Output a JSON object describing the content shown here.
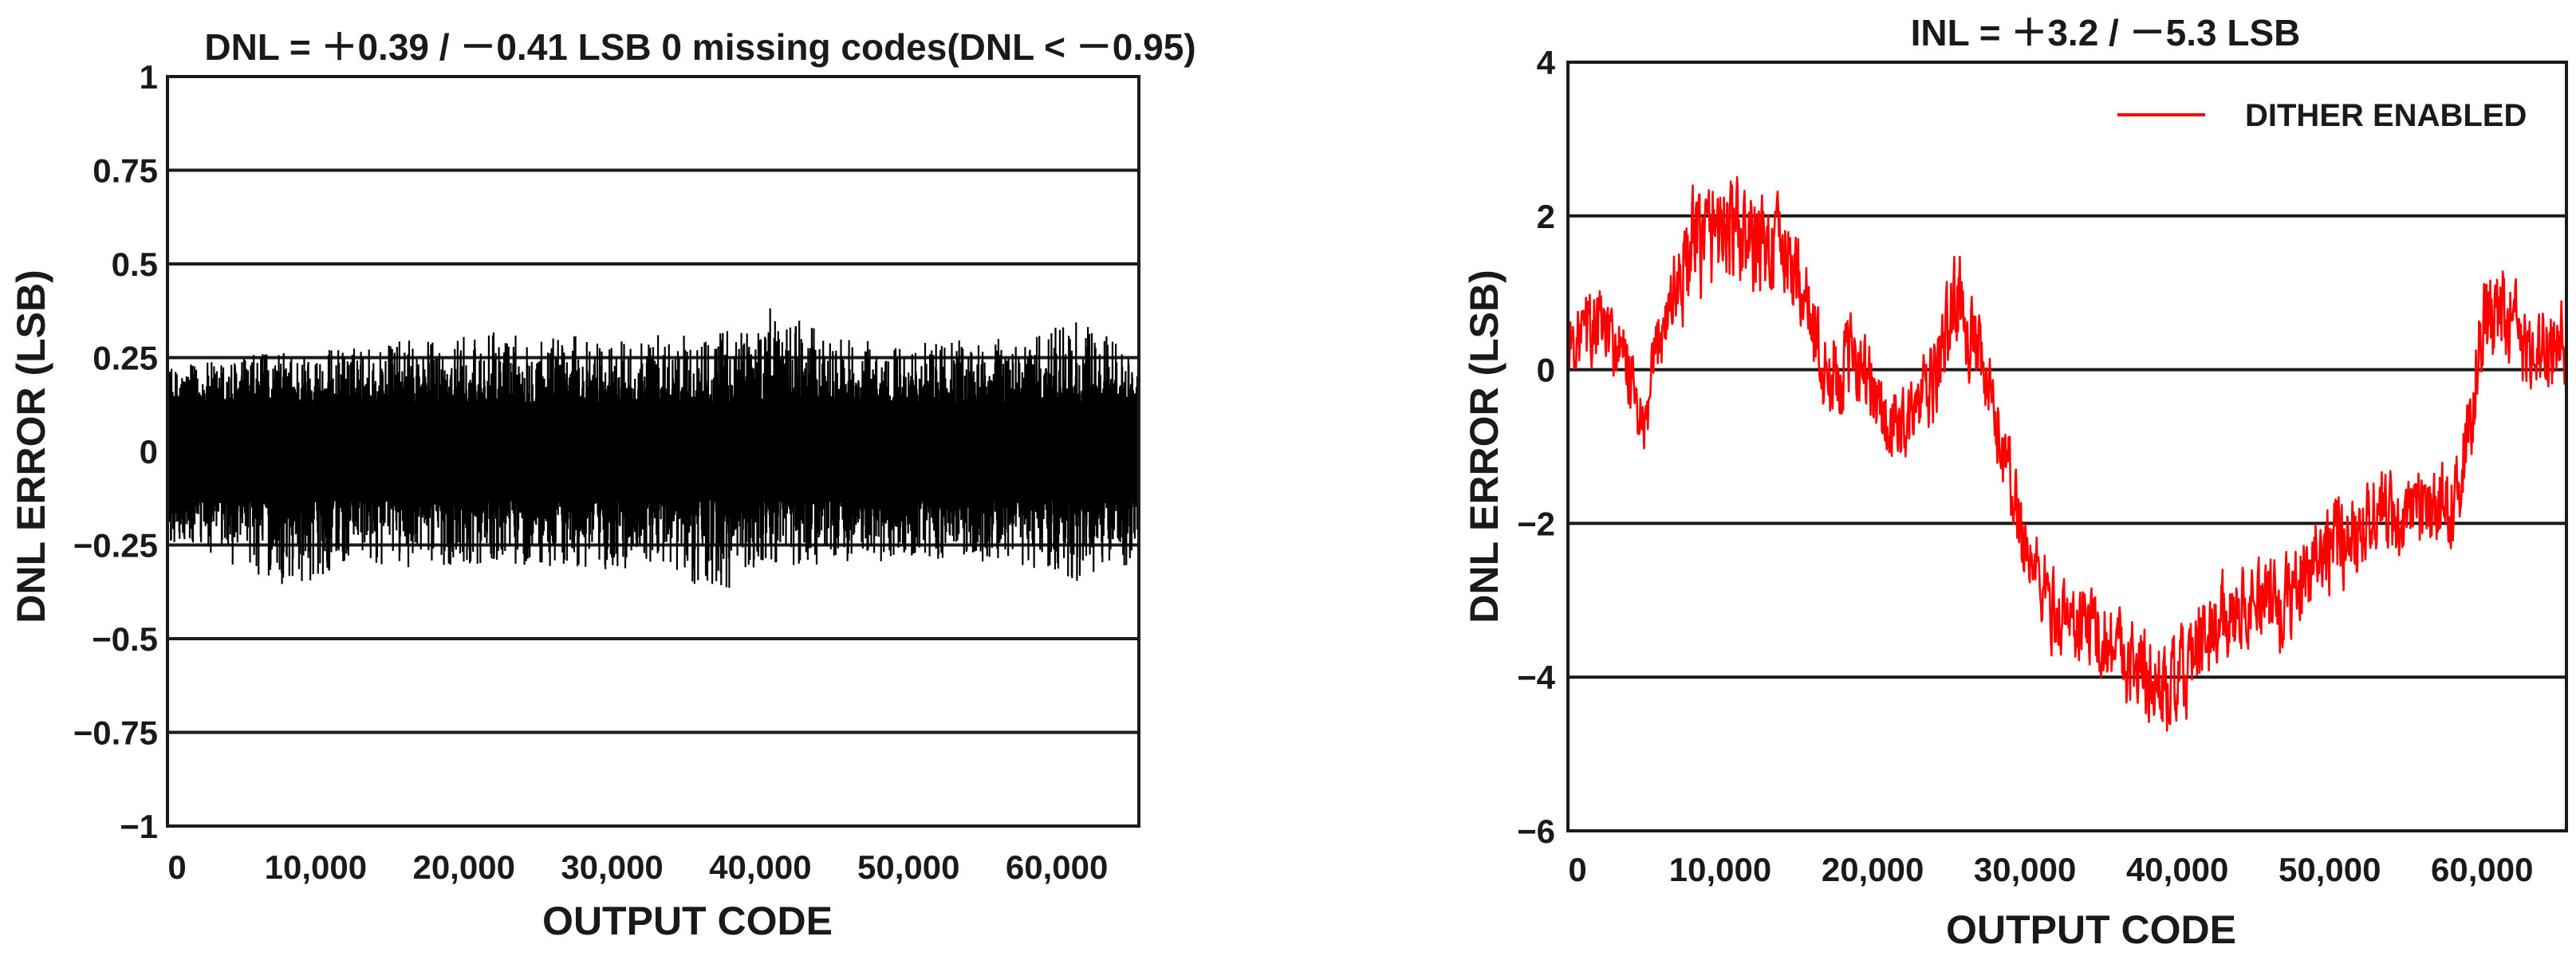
{
  "chart_data": [
    {
      "type": "line",
      "title": "DNL = ＋0.39 / －0.41 LSB 0 missing codes(DNL < －0.95)",
      "xlabel": "OUTPUT CODE",
      "ylabel": "DNL ERROR (LSB)",
      "xlim": [
        0,
        65535
      ],
      "ylim": [
        -1,
        1
      ],
      "x_ticks": [
        0,
        10000,
        20000,
        30000,
        40000,
        50000,
        60000
      ],
      "x_tick_labels": [
        "0",
        "10,000",
        "20,000",
        "30,000",
        "40,000",
        "50,000",
        "60,000"
      ],
      "y_ticks": [
        -1,
        -0.75,
        -0.5,
        -0.25,
        0,
        0.25,
        0.5,
        0.75,
        1
      ],
      "y_tick_labels": [
        "−1",
        "−0.75",
        "−0.5",
        "−0.25",
        "0",
        "0.25",
        "0.5",
        "0.75",
        "1"
      ],
      "grid": "horizontal",
      "series": [
        {
          "color": "#000000",
          "x": [
            0,
            4096,
            8192,
            12288,
            16384,
            20480,
            24576,
            28672,
            32768,
            36864,
            40960,
            45056,
            49152,
            53248,
            57344,
            61440,
            65535
          ],
          "upper": [
            0.22,
            0.25,
            0.27,
            0.28,
            0.3,
            0.31,
            0.33,
            0.3,
            0.31,
            0.32,
            0.39,
            0.3,
            0.29,
            0.3,
            0.3,
            0.35,
            0.26
          ],
          "lower": [
            -0.25,
            -0.3,
            -0.37,
            -0.3,
            -0.31,
            -0.3,
            -0.31,
            -0.33,
            -0.3,
            -0.39,
            -0.32,
            -0.3,
            -0.3,
            -0.29,
            -0.3,
            -0.35,
            -0.3
          ]
        }
      ]
    },
    {
      "type": "line",
      "title": "INL = ＋3.2 / －5.3 LSB",
      "xlabel": "OUTPUT CODE",
      "ylabel": "DNL ERROR (LSB)",
      "xlim": [
        0,
        65535
      ],
      "ylim": [
        -6,
        4
      ],
      "x_ticks": [
        0,
        10000,
        20000,
        30000,
        40000,
        50000,
        60000
      ],
      "x_tick_labels": [
        "0",
        "10,000",
        "20,000",
        "30,000",
        "40,000",
        "50,000",
        "60,000"
      ],
      "y_ticks": [
        -6,
        -4,
        -2,
        0,
        2,
        4
      ],
      "y_tick_labels": [
        "−6",
        "−4",
        "−2",
        "0",
        "2",
        "4"
      ],
      "grid": "horizontal",
      "legend_position": "top-right",
      "series": [
        {
          "name": "DITHER ENABLED",
          "color": "#ff0000",
          "x": [
            0,
            2000,
            4000,
            5000,
            6000,
            8000,
            10000,
            12000,
            14000,
            15500,
            17000,
            19000,
            21000,
            22500,
            24000,
            25500,
            27000,
            28500,
            30000,
            32000,
            34000,
            36000,
            38000,
            39500,
            41000,
            43000,
            45000,
            47000,
            49000,
            51000,
            53000,
            55000,
            57000,
            58500,
            60000,
            61500,
            63000,
            65535
          ],
          "center": [
            0.3,
            0.6,
            0.0,
            -0.9,
            0.5,
            1.5,
            1.9,
            1.6,
            1.6,
            1.0,
            -0.2,
            0.2,
            -0.8,
            -0.6,
            -0.2,
            1.0,
            0.1,
            -1.0,
            -2.3,
            -3.2,
            -3.3,
            -3.6,
            -4.0,
            -4.2,
            -3.8,
            -3.2,
            -3.0,
            -3.1,
            -2.4,
            -2.2,
            -1.8,
            -2.0,
            -1.8,
            -1.6,
            0.5,
            0.8,
            0.2,
            0.4
          ],
          "amplitude": [
            0.6,
            0.8,
            0.7,
            0.6,
            0.8,
            1.1,
            1.1,
            1.0,
            0.9,
            0.8,
            0.9,
            0.8,
            0.8,
            0.7,
            0.8,
            0.9,
            0.8,
            0.8,
            0.8,
            0.8,
            0.8,
            0.9,
            0.9,
            0.9,
            0.9,
            0.8,
            0.8,
            0.9,
            0.9,
            0.9,
            0.8,
            0.8,
            0.8,
            0.8,
            1.0,
            0.9,
            0.8,
            0.8
          ]
        }
      ]
    }
  ]
}
